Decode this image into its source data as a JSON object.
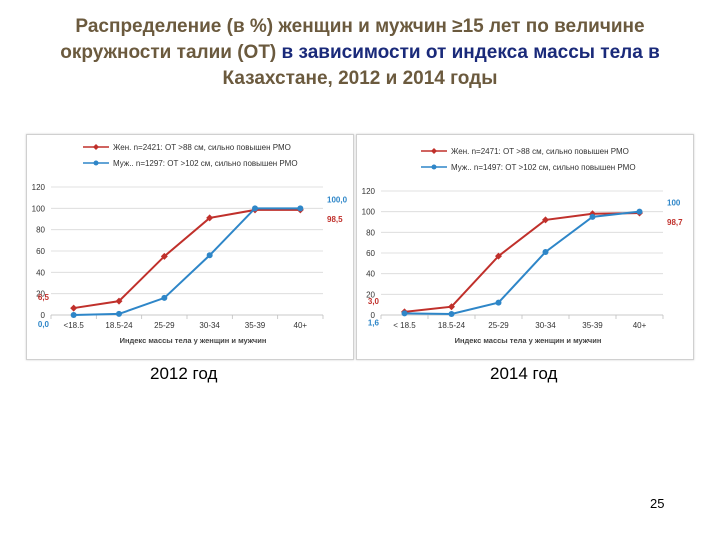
{
  "slide": {
    "title_part1": "Распределение (в %) женщин и мужчин ≥15 лет по величине окружности талии (ОТ)",
    "title_part2": "в зависимости от индекса массы тела в",
    "title_part3": "Казахстане, 2012 и 2014 годы",
    "page_number": "25"
  },
  "colors": {
    "women": "#c0302b",
    "men": "#2e86c8",
    "grid": "#d9d9d9",
    "axis_text": "#333333"
  },
  "chart_data": [
    {
      "type": "line",
      "caption": "2012 год",
      "categories": [
        "<18.5",
        "18.5-24",
        "25-29",
        "30-34",
        "35-39",
        "40+"
      ],
      "series": [
        {
          "name": "Жен. n=2421: ОТ >88 см, сильно повышен РМО",
          "values": [
            6.5,
            13,
            55,
            91,
            98.5,
            98.5
          ]
        },
        {
          "name": "Муж.. n=1297: ОТ >102 см, сильно повышен РМО",
          "values": [
            0.0,
            1,
            16,
            56,
            100.0,
            100.0
          ]
        }
      ],
      "point_labels": [
        {
          "series": 0,
          "index": 0,
          "text": "6,5"
        },
        {
          "series": 1,
          "index": 0,
          "text": "0,0"
        },
        {
          "series": 1,
          "index": 5,
          "text": "100,0"
        },
        {
          "series": 0,
          "index": 5,
          "text": "98,5"
        }
      ],
      "xlabel": "Индекс массы тела у женщин и мужчин",
      "ylabel": "",
      "ylim": [
        0,
        120
      ],
      "yticks": [
        "0",
        "20",
        "40",
        "60",
        "80",
        "100",
        "120"
      ],
      "grid": true,
      "legend_position": "top"
    },
    {
      "type": "line",
      "caption": "2014 год",
      "categories": [
        "< 18.5",
        "18.5-24",
        "25-29",
        "30-34",
        "35-39",
        "40+"
      ],
      "series": [
        {
          "name": "Жен. n=2471: ОТ >88 см, сильно повышен РМО",
          "values": [
            3.0,
            8,
            57,
            92,
            98,
            98.7
          ]
        },
        {
          "name": "Муж.. n=1497: ОТ >102 см, сильно повышен РМО",
          "values": [
            1.6,
            1,
            12,
            61,
            95,
            100
          ]
        }
      ],
      "point_labels": [
        {
          "series": 0,
          "index": 0,
          "text": "3,0"
        },
        {
          "series": 1,
          "index": 0,
          "text": "1,6"
        },
        {
          "series": 1,
          "index": 5,
          "text": "100"
        },
        {
          "series": 0,
          "index": 5,
          "text": "98,7"
        }
      ],
      "xlabel": "Индекс массы тела у женщин и мужчин",
      "ylabel": "",
      "ylim": [
        0,
        120
      ],
      "yticks": [
        "0",
        "20",
        "40",
        "60",
        "80",
        "100",
        "120"
      ],
      "grid": true,
      "legend_position": "top"
    }
  ]
}
